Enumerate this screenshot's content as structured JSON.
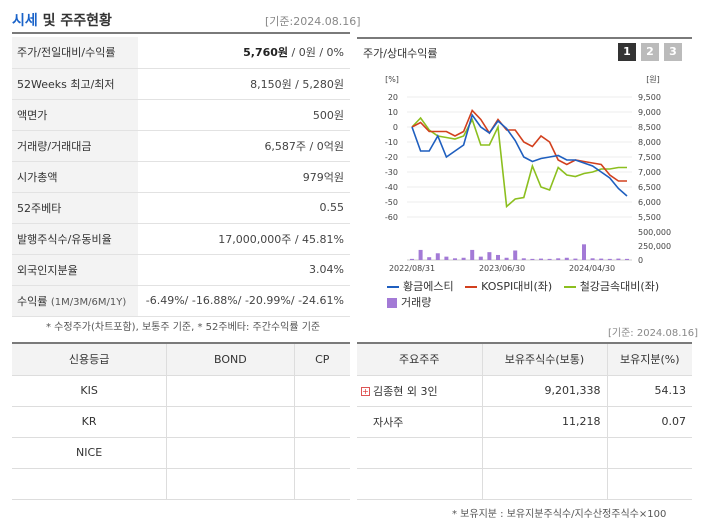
{
  "header": {
    "title_part1": "시세",
    "title_part2": " 및 주주현황",
    "date": "[기준:2024.08.16]"
  },
  "info_rows": [
    {
      "label": "주가/전일대비/수익률",
      "value_strong": "5,760원",
      "value_rest": " / 0원 / 0%"
    },
    {
      "label": "52Weeks 최고/최저",
      "value": "8,150원 / 5,280원"
    },
    {
      "label": "액면가",
      "value": "500원"
    },
    {
      "label": "거래량/거래대금",
      "value": "6,587주 / 0억원"
    },
    {
      "label": "시가총액",
      "value": "979억원"
    },
    {
      "label": "52주베타",
      "value": "0.55"
    },
    {
      "label": "발행주식수/유동비율",
      "value": "17,000,000주 / 45.81%"
    },
    {
      "label": "외국인지분율",
      "value": "3.04%"
    },
    {
      "label": "수익률",
      "label_sub": "(1M/3M/6M/1Y)",
      "value": "-6.49%/ -16.88%/ -20.99%/ -24.61%"
    }
  ],
  "note1": "* 수정주가(차트포함), 보통주 기준, * 52주베타: 주간수익률 기준",
  "chart": {
    "title": "주가/상대수익률",
    "tabs": [
      "1",
      "2",
      "3"
    ],
    "left_unit": "[%]",
    "right_unit": "[원]",
    "left_ticks": [
      "20",
      "10",
      "0",
      "-10",
      "-20",
      "-30",
      "-40",
      "-50",
      "-60"
    ],
    "right_ticks": [
      "9,500",
      "9,000",
      "8,500",
      "8,000",
      "7,500",
      "7,000",
      "6,500",
      "6,000",
      "5,500"
    ],
    "volume_ticks": [
      "500,000",
      "250,000",
      "0"
    ],
    "x_ticks": [
      "2022/08/31",
      "2023/06/30",
      "2024/04/30"
    ],
    "legend": [
      {
        "name": "황금에스티",
        "color": "#1f5fbf",
        "kind": "line"
      },
      {
        "name": "KOSPI대비(좌)",
        "color": "#d2401e",
        "kind": "line"
      },
      {
        "name": "철강금속대비(좌)",
        "color": "#8cbf1f",
        "kind": "line"
      },
      {
        "name": "거래량",
        "color": "#a37ad6",
        "kind": "box"
      }
    ],
    "colors": {
      "price": "#1f5fbf",
      "kospi": "#d2401e",
      "steel": "#8cbf1f",
      "volume": "#a37ad6"
    }
  },
  "chart_data": {
    "type": "line",
    "x_ticks": [
      "2022/08/31",
      "2023/06/30",
      "2024/04/30"
    ],
    "left_axis": {
      "unit": "[%]",
      "range": [
        -60,
        20
      ]
    },
    "right_axis": {
      "unit": "[원]",
      "range": [
        5500,
        9500
      ]
    },
    "volume_axis": {
      "range": [
        0,
        500000
      ]
    },
    "series": [
      {
        "name": "황금에스티",
        "axis": "right",
        "values": [
          8500,
          7700,
          7700,
          8200,
          7500,
          7700,
          7900,
          8900,
          8500,
          8300,
          8700,
          8450,
          8050,
          7500,
          7350,
          7450,
          7500,
          7550,
          7400,
          7400,
          7300,
          7200,
          7000,
          6800,
          6450,
          6200
        ]
      },
      {
        "name": "KOSPI대비(좌)",
        "axis": "left",
        "values": [
          0,
          3,
          -3,
          -3,
          -3,
          -6,
          -3,
          11,
          5,
          -4,
          5,
          -2,
          -2,
          -10,
          -13,
          -6,
          -10,
          -22,
          -25,
          -22,
          -23,
          -24,
          -25,
          -32,
          -36,
          -36
        ]
      },
      {
        "name": "철강금속대비(좌)",
        "axis": "left",
        "values": [
          0,
          6,
          -2,
          -6,
          -7,
          -8,
          -6,
          5,
          -12,
          -12,
          0,
          -53,
          -48,
          -47,
          -26,
          -40,
          -42,
          -27,
          -32,
          -33,
          -31,
          -30,
          -28,
          -28,
          -27,
          -27
        ]
      },
      {
        "name": "거래량",
        "axis": "volume",
        "values": [
          20000,
          180000,
          50000,
          120000,
          60000,
          30000,
          40000,
          180000,
          60000,
          140000,
          90000,
          40000,
          170000,
          30000,
          20000,
          25000,
          20000,
          30000,
          40000,
          25000,
          280000,
          30000,
          25000,
          20000,
          25000,
          20000
        ]
      }
    ]
  },
  "note_date2": "[기준: 2024.08.16]",
  "credit": {
    "headers": [
      "신용등급",
      "BOND",
      "CP"
    ],
    "rows": [
      [
        "KIS",
        "",
        ""
      ],
      [
        "KR",
        "",
        ""
      ],
      [
        "NICE",
        "",
        ""
      ],
      [
        "",
        "",
        ""
      ]
    ]
  },
  "holders": {
    "headers": [
      "주요주주",
      "보유주식수(보통)",
      "보유지분(%)"
    ],
    "rows": [
      {
        "name": "김종현 외 3인",
        "shares": "9,201,338",
        "pct": "54.13",
        "expand": true
      },
      {
        "name": "자사주",
        "shares": "11,218",
        "pct": "0.07",
        "expand": false
      }
    ]
  },
  "note2": "* 보유지분 : 보유지분주식수/지수산정주식수×100"
}
